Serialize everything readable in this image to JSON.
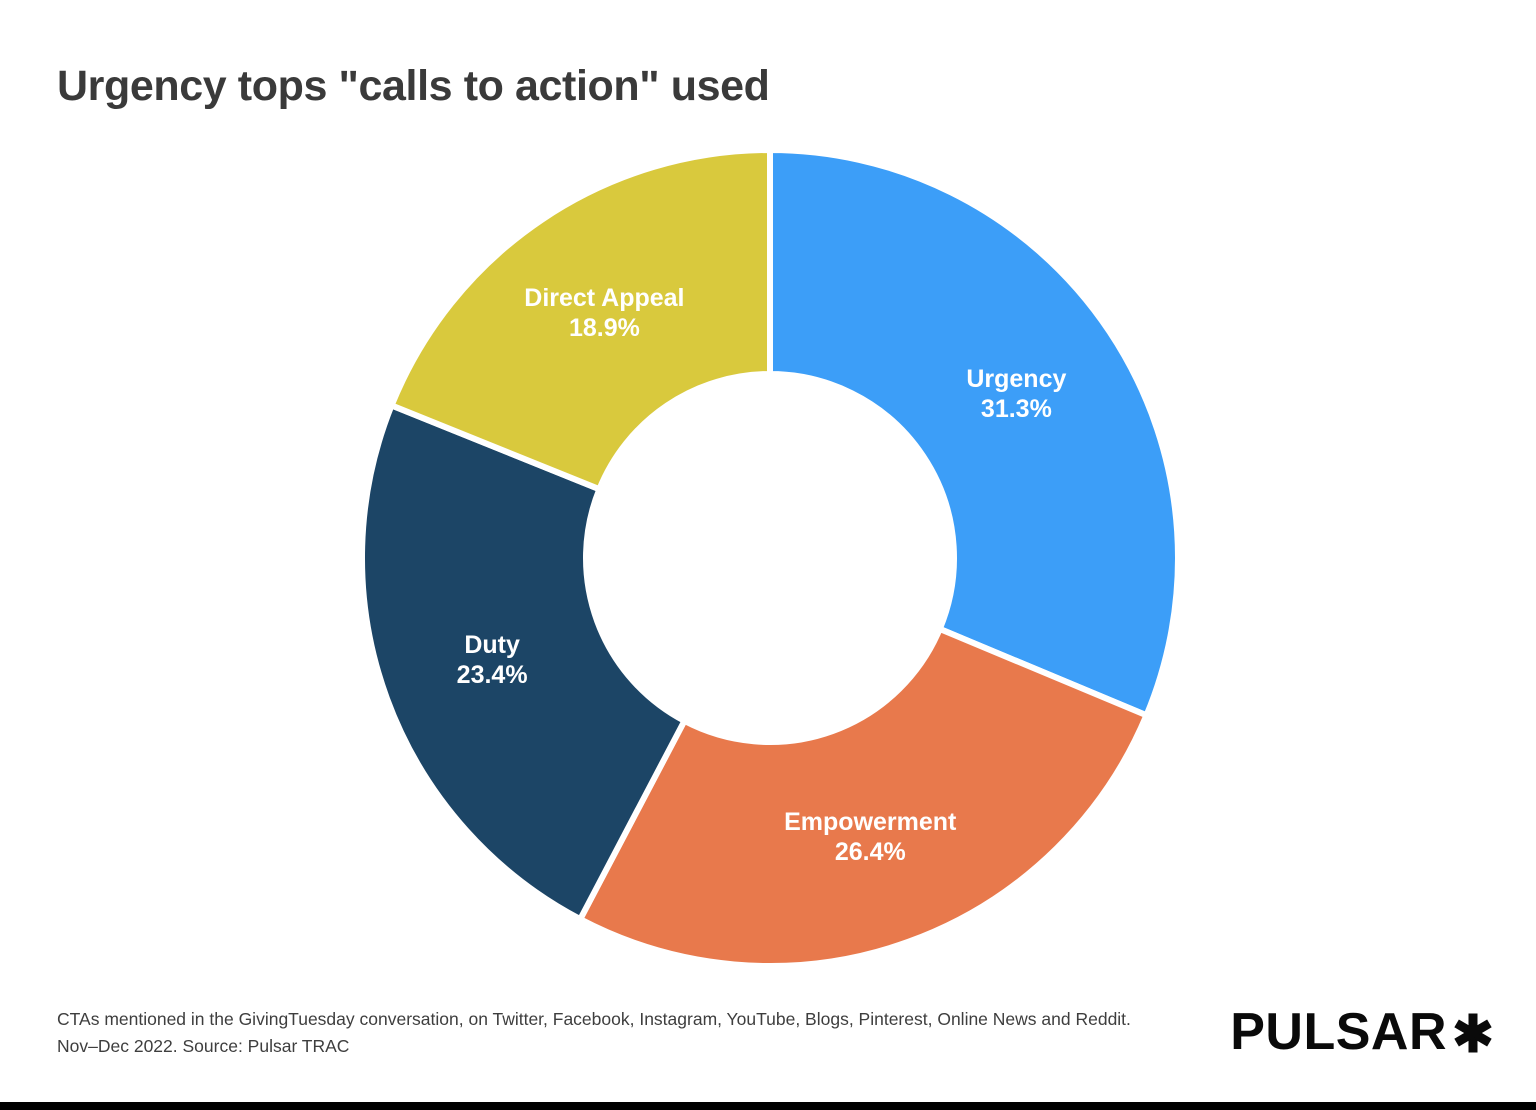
{
  "title": "Urgency tops \"calls to action\" used",
  "chart_data": {
    "type": "pie",
    "subtype": "donut",
    "title": "Urgency tops \"calls to action\" used",
    "categories": [
      "Urgency",
      "Empowerment",
      "Duty",
      "Direct Appeal"
    ],
    "values": [
      31.3,
      26.4,
      23.4,
      18.9
    ],
    "labels": [
      "31.3%",
      "26.4%",
      "23.4%",
      "18.9%"
    ],
    "unit": "%",
    "colors": [
      "#3C9EF8",
      "#E8794C",
      "#1C4566",
      "#D9C93D"
    ],
    "start_angle_deg": 0,
    "direction": "clockwise",
    "inner_radius_ratio": 0.45,
    "gap_color": "#FFFFFF",
    "slice_label_color": "#FFFFFF",
    "legend": "none"
  },
  "footer": {
    "note_line1": "CTAs mentioned in the GivingTuesday conversation, on Twitter, Facebook, Instagram, YouTube, Blogs, Pinterest, Online News and Reddit.",
    "note_line2": "Nov–Dec 2022. Source: Pulsar TRAC",
    "brand": "PULSAR"
  }
}
